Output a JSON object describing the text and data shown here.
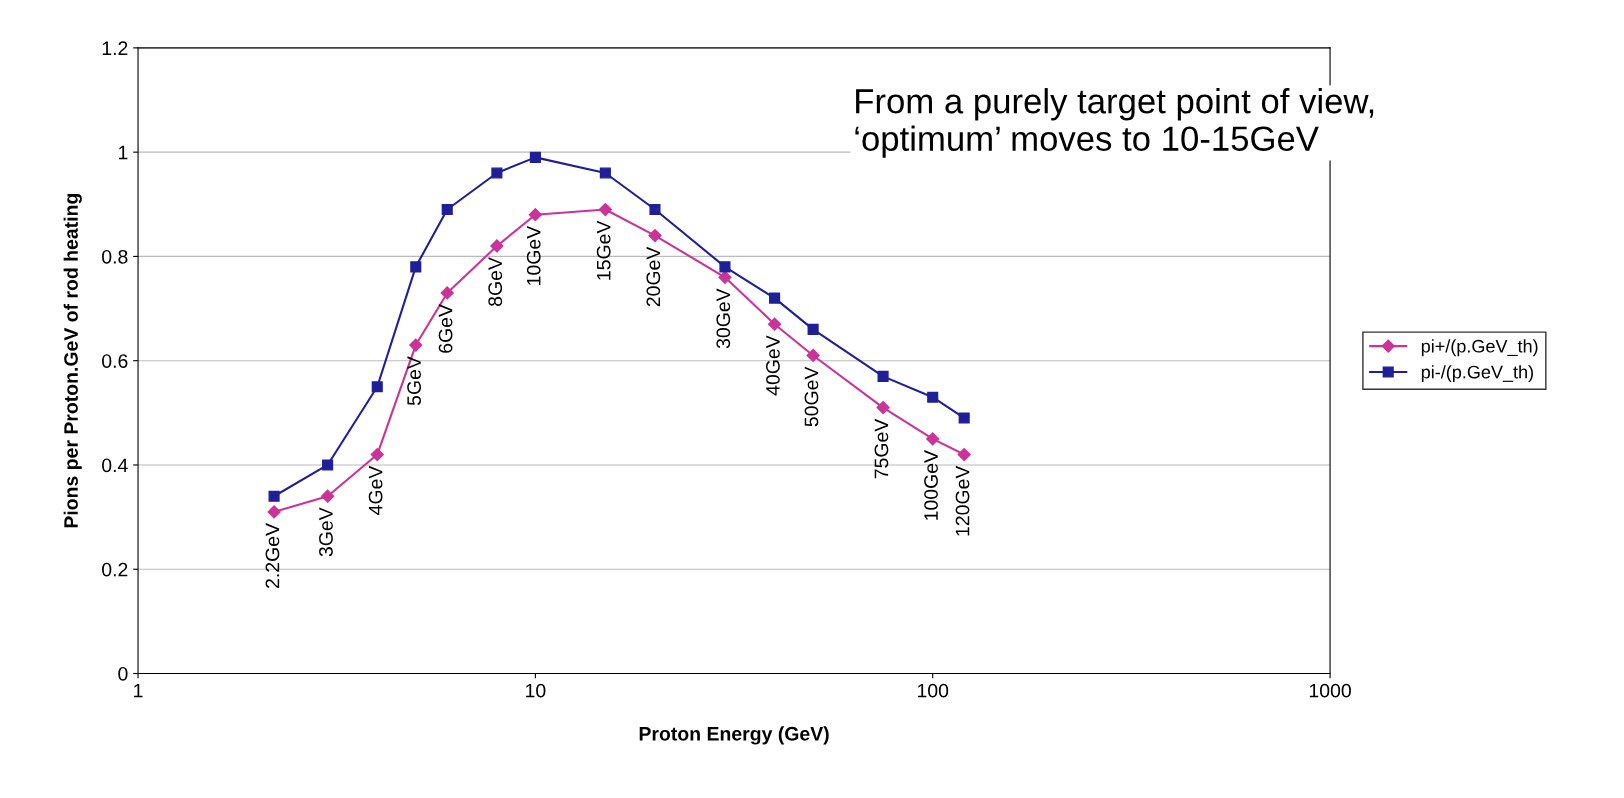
{
  "chart_data": {
    "type": "line",
    "xlabel": "Proton Energy (GeV)",
    "ylabel": "Pions per Proton.GeV of rod heating",
    "log": "x",
    "xlim": [
      1,
      1000
    ],
    "xticks": [
      1,
      10,
      100,
      1000
    ],
    "ylim": [
      0,
      1.2
    ],
    "yticks": [
      0,
      0.2,
      0.4,
      0.6,
      0.8,
      1,
      1.2
    ],
    "grid": "y",
    "legend": "right",
    "series": [
      {
        "name": "pi+/(p.GeV_th)",
        "color": "#cc3399",
        "marker": "diamond",
        "x": [
          2.2,
          3,
          4,
          5,
          6,
          8,
          10,
          15,
          20,
          30,
          40,
          50,
          75,
          100,
          120
        ],
        "values": [
          0.31,
          0.34,
          0.42,
          0.63,
          0.73,
          0.82,
          0.88,
          0.89,
          0.84,
          0.76,
          0.67,
          0.61,
          0.51,
          0.45,
          0.42
        ]
      },
      {
        "name": "pi-/(p.GeV_th)",
        "color": "#1f1f99",
        "marker": "square",
        "x": [
          2.2,
          3,
          4,
          5,
          6,
          8,
          10,
          15,
          20,
          30,
          40,
          50,
          75,
          100,
          120
        ],
        "values": [
          0.34,
          0.4,
          0.55,
          0.78,
          0.89,
          0.96,
          0.99,
          0.96,
          0.89,
          0.78,
          0.72,
          0.66,
          0.57,
          0.53,
          0.49
        ]
      }
    ],
    "annotations": [
      "From a purely target point of view,\n‘optimum’ moves to 10-15GeV",
      {
        "text": "2.2GeV",
        "x": 2.2,
        "y": 0.31
      },
      {
        "text": "3GeV",
        "x": 3,
        "y": 0.34
      },
      {
        "text": "4GeV",
        "x": 4,
        "y": 0.42
      },
      {
        "text": "5GeV",
        "x": 5,
        "y": 0.63
      },
      {
        "text": "6GeV",
        "x": 6,
        "y": 0.73
      },
      {
        "text": "8GeV",
        "x": 8,
        "y": 0.82
      },
      {
        "text": "10GeV",
        "x": 10,
        "y": 0.88
      },
      {
        "text": "15GeV",
        "x": 15,
        "y": 0.89
      },
      {
        "text": "20GeV",
        "x": 20,
        "y": 0.84
      },
      {
        "text": "30GeV",
        "x": 30,
        "y": 0.76
      },
      {
        "text": "40GeV",
        "x": 40,
        "y": 0.67
      },
      {
        "text": "50GeV",
        "x": 50,
        "y": 0.61
      },
      {
        "text": "75GeV",
        "x": 75,
        "y": 0.51
      },
      {
        "text": "100GeV",
        "x": 100,
        "y": 0.45
      },
      {
        "text": "120GeV",
        "x": 120,
        "y": 0.42
      }
    ]
  }
}
